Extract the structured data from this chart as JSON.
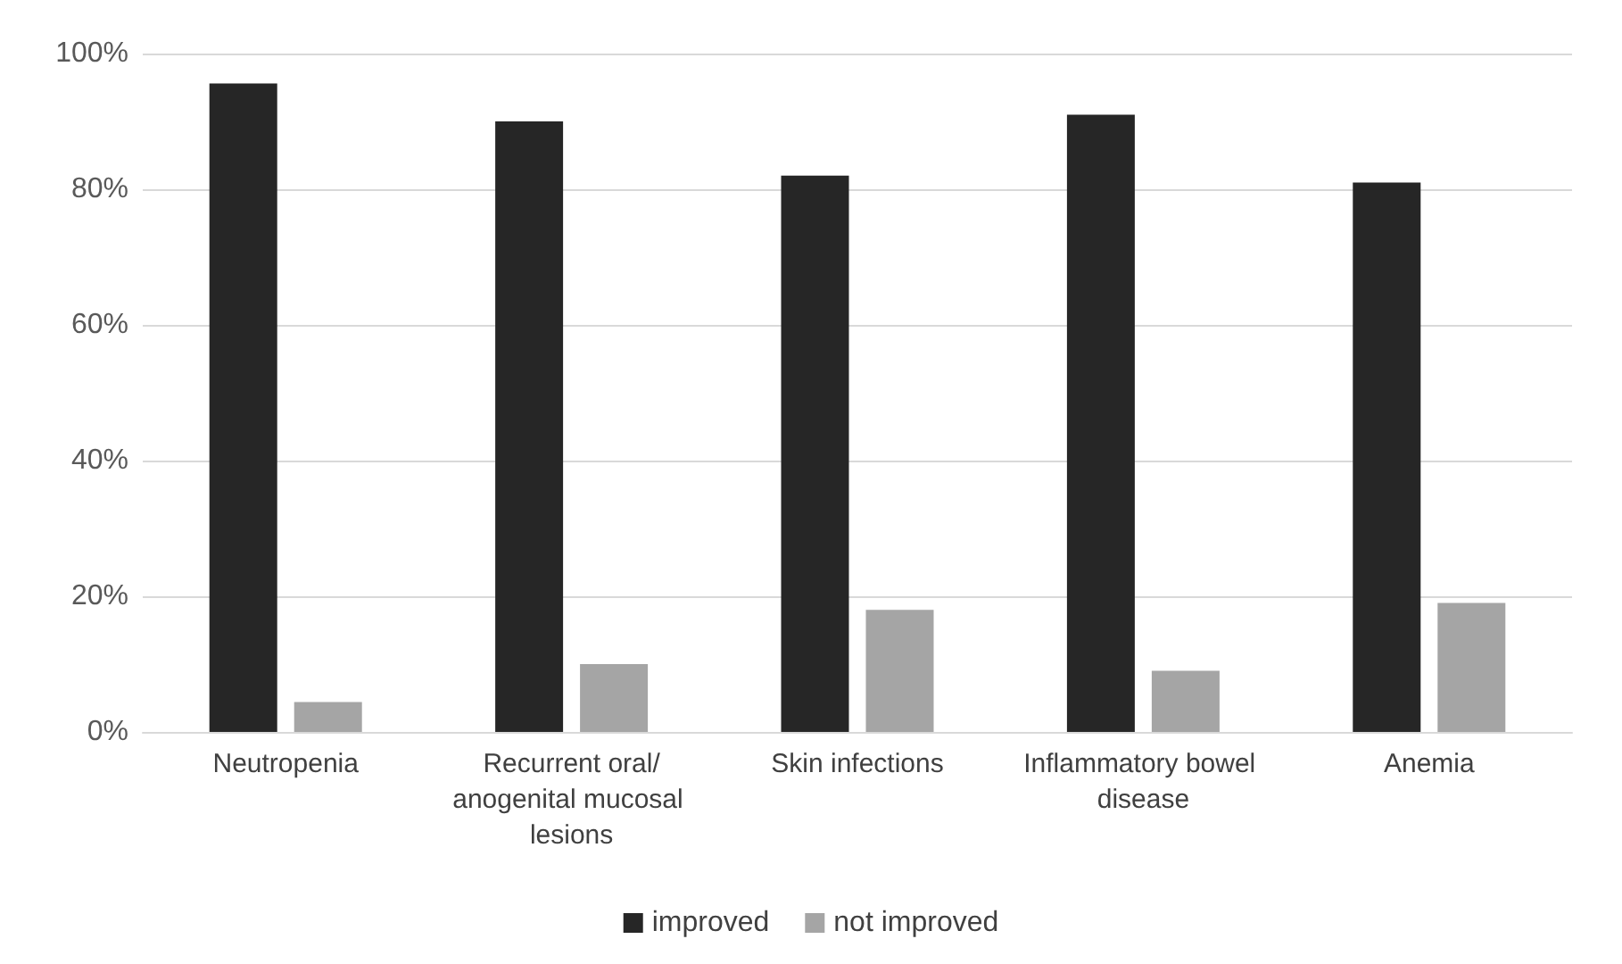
{
  "chart_data": {
    "type": "bar",
    "categories": [
      "Neutropenia",
      "Recurrent oral/anogenital mucosal lesions",
      "Skin infections",
      "Inflammatory bowel disease",
      "Anemia"
    ],
    "series": [
      {
        "name": "improved",
        "color": "#262626",
        "values": [
          95.6,
          90,
          82,
          91,
          81
        ]
      },
      {
        "name": "not improved",
        "color": "#a5a5a5",
        "values": [
          4.4,
          10,
          18,
          9,
          19
        ]
      }
    ],
    "ylim": [
      0,
      100
    ],
    "yticks": [
      {
        "value": 0,
        "label": "0%"
      },
      {
        "value": 20,
        "label": "20%"
      },
      {
        "value": 40,
        "label": "40%"
      },
      {
        "value": 60,
        "label": "60%"
      },
      {
        "value": 80,
        "label": "80%"
      },
      {
        "value": 100,
        "label": "100%"
      }
    ],
    "grid": "y",
    "legend": "bottom"
  }
}
